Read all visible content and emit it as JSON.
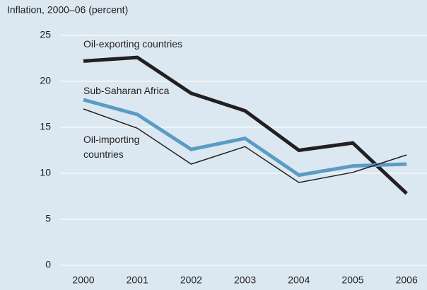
{
  "chart_data": {
    "type": "line",
    "title": "Inflation, 2000–06 (percent)",
    "categories": [
      "2000",
      "2001",
      "2002",
      "2003",
      "2004",
      "2005",
      "2006"
    ],
    "series": [
      {
        "name": "Oil-exporting countries",
        "color": "#231f20",
        "values": [
          22.2,
          22.6,
          18.7,
          16.8,
          12.5,
          13.3,
          7.8
        ]
      },
      {
        "name": "Sub-Saharan Africa",
        "color": "#5b9bc4",
        "values": [
          18.0,
          16.4,
          12.6,
          13.8,
          9.8,
          10.8,
          11.0
        ]
      },
      {
        "name": "Oil-importing countries",
        "color": "#231f20",
        "values": [
          17.0,
          14.9,
          11.0,
          12.9,
          9.0,
          10.1,
          12.0
        ]
      }
    ],
    "ylim": [
      0,
      25
    ],
    "yticks": [
      0,
      5,
      10,
      15,
      20,
      25
    ],
    "grid": true
  }
}
